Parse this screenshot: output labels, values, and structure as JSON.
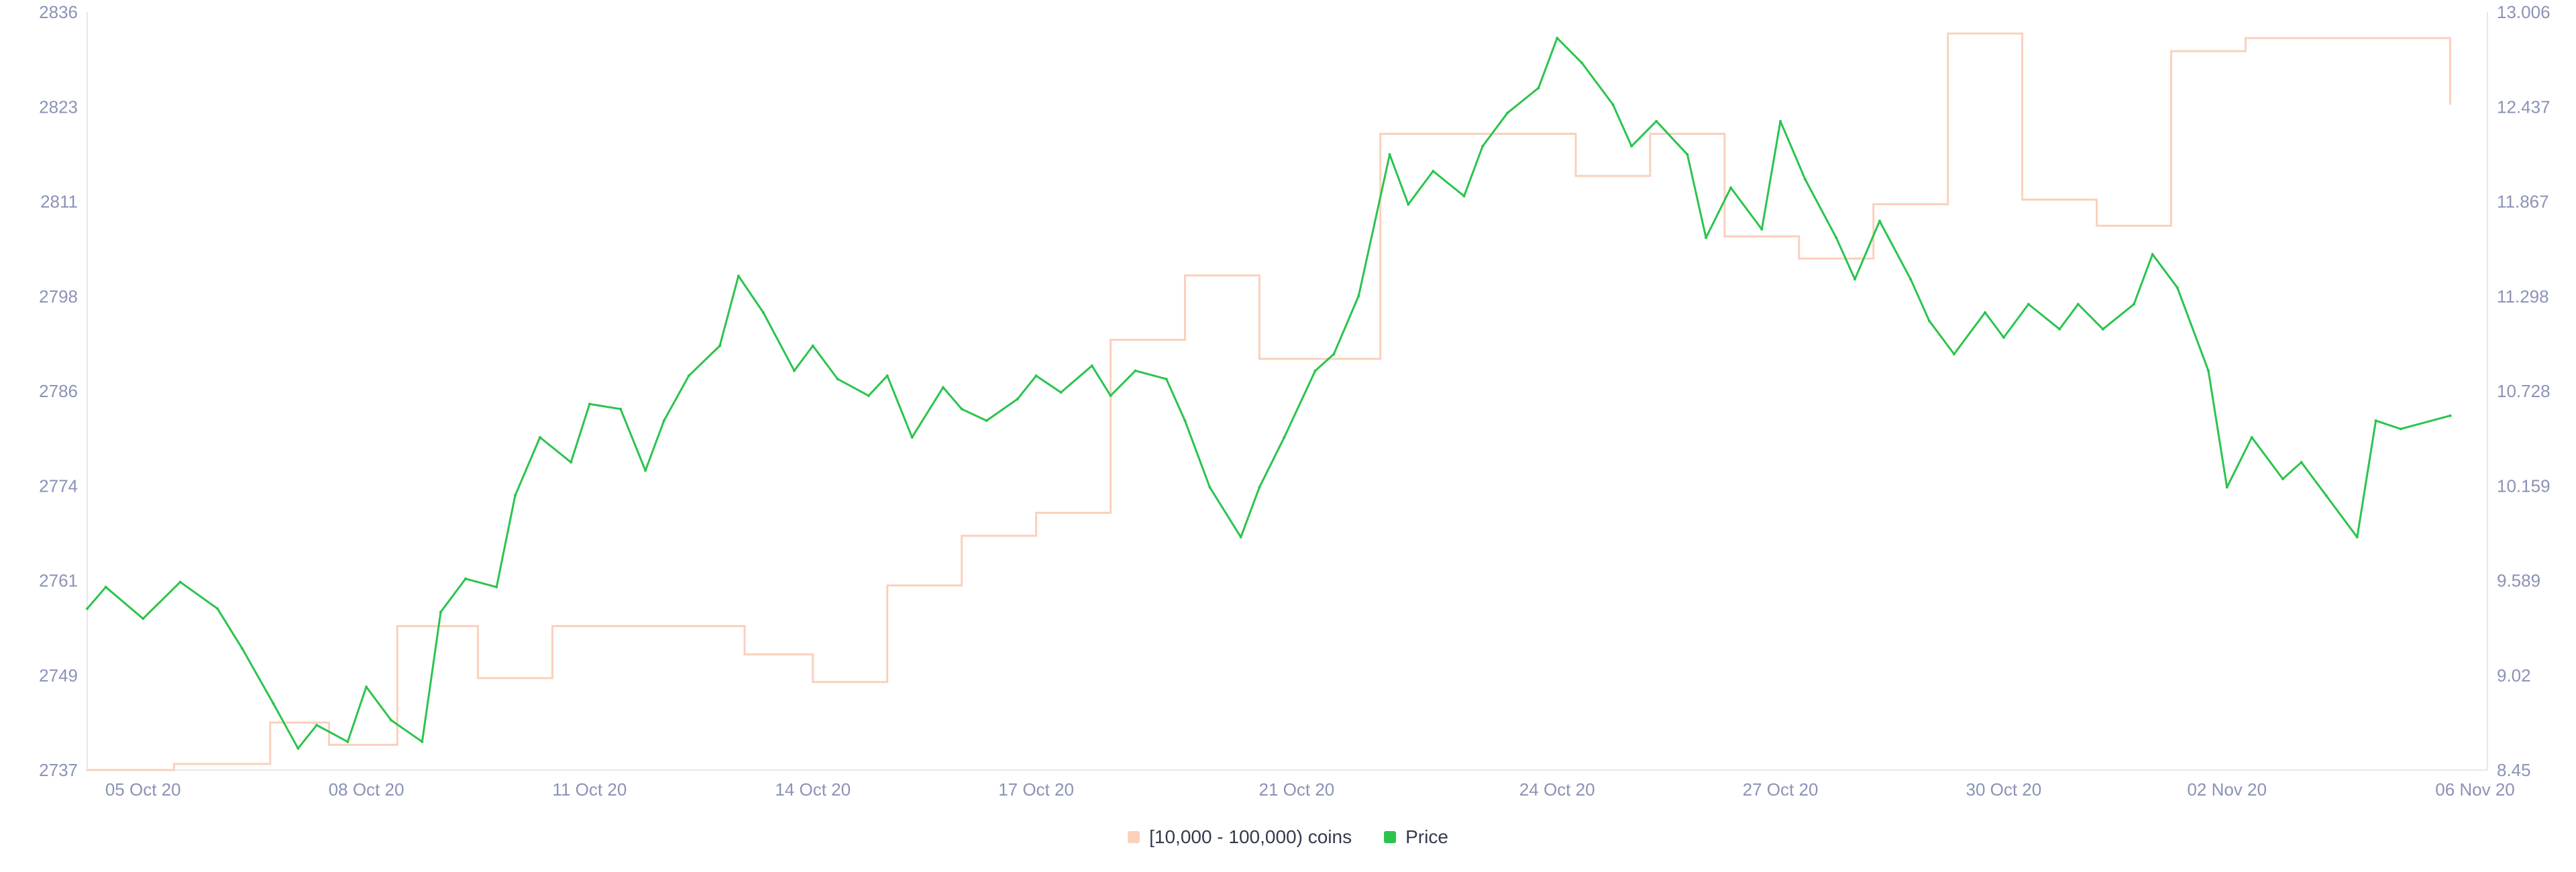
{
  "chart_data": {
    "type": "line",
    "title": "",
    "y_left": {
      "ticks": [
        "2737",
        "2749",
        "2761",
        "2774",
        "2786",
        "2798",
        "2811",
        "2823",
        "2836"
      ],
      "range": [
        2737,
        2836
      ]
    },
    "y_right": {
      "ticks": [
        "8.45",
        "9.02",
        "9.589",
        "10.159",
        "10.728",
        "11.298",
        "11.867",
        "12.437",
        "13.006"
      ],
      "range": [
        8.45,
        13.006
      ]
    },
    "x_ticks": [
      "05 Oct 20",
      "08 Oct 20",
      "11 Oct 20",
      "14 Oct 20",
      "17 Oct 20",
      "21 Oct 20",
      "24 Oct 20",
      "27 Oct 20",
      "30 Oct 20",
      "02 Nov 20",
      "06 Nov 20"
    ],
    "x_range": [
      "2020-10-04T18:00",
      "2020-11-06T00:00"
    ],
    "series": [
      {
        "name": "[10,000 - 100,000) coins",
        "axis": "left",
        "color": "#fbd0bd",
        "style": "step",
        "points": [
          [
            "2020-10-04T18:00",
            2737
          ],
          [
            "2020-10-05T22:00",
            2737.8
          ],
          [
            "2020-10-07T05:00",
            2743.2
          ],
          [
            "2020-10-08T00:00",
            2740.3
          ],
          [
            "2020-10-08T22:00",
            2755.8
          ],
          [
            "2020-10-10T00:00",
            2749
          ],
          [
            "2020-10-11T00:00",
            2755.8
          ],
          [
            "2020-10-13T14:00",
            2752.1
          ],
          [
            "2020-10-14T12:00",
            2748.5
          ],
          [
            "2020-10-15T12:00",
            2761.1
          ],
          [
            "2020-10-16T12:00",
            2767.6
          ],
          [
            "2020-10-17T12:00",
            2770.6
          ],
          [
            "2020-10-18T12:00",
            2793.2
          ],
          [
            "2020-10-19T12:00",
            2801.6
          ],
          [
            "2020-10-20T12:00",
            2790.7
          ],
          [
            "2020-10-22T03:00",
            2820.1
          ],
          [
            "2020-10-24T18:00",
            2814.6
          ],
          [
            "2020-10-25T18:00",
            2820.1
          ],
          [
            "2020-10-26T18:00",
            2806.7
          ],
          [
            "2020-10-27T18:00",
            2803.8
          ],
          [
            "2020-10-28T18:00",
            2810.9
          ],
          [
            "2020-10-29T18:00",
            2833.2
          ],
          [
            "2020-10-30T18:00",
            2811.5
          ],
          [
            "2020-10-31T18:00",
            2808.1
          ],
          [
            "2020-11-01T18:00",
            2830.9
          ],
          [
            "2020-11-02T18:00",
            2832.6
          ],
          [
            "2020-11-05T12:00",
            2824
          ]
        ]
      },
      {
        "name": "Price",
        "axis": "right",
        "color": "#2bc44e",
        "style": "line",
        "points": [
          [
            "2020-10-04T18:00",
            9.42
          ],
          [
            "2020-10-05T00:00",
            9.55
          ],
          [
            "2020-10-05T12:00",
            9.36
          ],
          [
            "2020-10-06T00:00",
            9.58
          ],
          [
            "2020-10-06T12:00",
            9.42
          ],
          [
            "2020-10-06T20:00",
            9.18
          ],
          [
            "2020-10-07T06:00",
            8.85
          ],
          [
            "2020-10-07T14:00",
            8.58
          ],
          [
            "2020-10-07T20:00",
            8.72
          ],
          [
            "2020-10-08T06:00",
            8.62
          ],
          [
            "2020-10-08T12:00",
            8.95
          ],
          [
            "2020-10-08T20:00",
            8.75
          ],
          [
            "2020-10-09T06:00",
            8.62
          ],
          [
            "2020-10-09T12:00",
            9.4
          ],
          [
            "2020-10-09T20:00",
            9.6
          ],
          [
            "2020-10-10T06:00",
            9.55
          ],
          [
            "2020-10-10T12:00",
            10.1
          ],
          [
            "2020-10-10T20:00",
            10.45
          ],
          [
            "2020-10-11T06:00",
            10.3
          ],
          [
            "2020-10-11T12:00",
            10.65
          ],
          [
            "2020-10-11T22:00",
            10.62
          ],
          [
            "2020-10-12T06:00",
            10.25
          ],
          [
            "2020-10-12T12:00",
            10.55
          ],
          [
            "2020-10-12T20:00",
            10.82
          ],
          [
            "2020-10-13T06:00",
            11.0
          ],
          [
            "2020-10-13T12:00",
            11.42
          ],
          [
            "2020-10-13T20:00",
            11.2
          ],
          [
            "2020-10-14T06:00",
            10.85
          ],
          [
            "2020-10-14T12:00",
            11.0
          ],
          [
            "2020-10-14T20:00",
            10.8
          ],
          [
            "2020-10-15T06:00",
            10.7
          ],
          [
            "2020-10-15T12:00",
            10.82
          ],
          [
            "2020-10-15T20:00",
            10.45
          ],
          [
            "2020-10-16T06:00",
            10.75
          ],
          [
            "2020-10-16T12:00",
            10.62
          ],
          [
            "2020-10-16T20:00",
            10.55
          ],
          [
            "2020-10-17T06:00",
            10.68
          ],
          [
            "2020-10-17T12:00",
            10.82
          ],
          [
            "2020-10-17T20:00",
            10.72
          ],
          [
            "2020-10-18T06:00",
            10.88
          ],
          [
            "2020-10-18T12:00",
            10.7
          ],
          [
            "2020-10-18T20:00",
            10.85
          ],
          [
            "2020-10-19T06:00",
            10.8
          ],
          [
            "2020-10-19T12:00",
            10.55
          ],
          [
            "2020-10-19T20:00",
            10.15
          ],
          [
            "2020-10-20T06:00",
            9.85
          ],
          [
            "2020-10-20T12:00",
            10.15
          ],
          [
            "2020-10-20T20:00",
            10.45
          ],
          [
            "2020-10-21T06:00",
            10.85
          ],
          [
            "2020-10-21T12:00",
            10.95
          ],
          [
            "2020-10-21T20:00",
            11.3
          ],
          [
            "2020-10-22T06:00",
            12.15
          ],
          [
            "2020-10-22T12:00",
            11.85
          ],
          [
            "2020-10-22T20:00",
            12.05
          ],
          [
            "2020-10-23T06:00",
            11.9
          ],
          [
            "2020-10-23T12:00",
            12.2
          ],
          [
            "2020-10-23T20:00",
            12.4
          ],
          [
            "2020-10-24T06:00",
            12.55
          ],
          [
            "2020-10-24T12:00",
            12.85
          ],
          [
            "2020-10-24T20:00",
            12.7
          ],
          [
            "2020-10-25T06:00",
            12.45
          ],
          [
            "2020-10-25T12:00",
            12.2
          ],
          [
            "2020-10-25T20:00",
            12.35
          ],
          [
            "2020-10-26T06:00",
            12.15
          ],
          [
            "2020-10-26T12:00",
            11.65
          ],
          [
            "2020-10-26T20:00",
            11.95
          ],
          [
            "2020-10-27T06:00",
            11.7
          ],
          [
            "2020-10-27T12:00",
            12.35
          ],
          [
            "2020-10-27T20:00",
            12.0
          ],
          [
            "2020-10-28T06:00",
            11.65
          ],
          [
            "2020-10-28T12:00",
            11.4
          ],
          [
            "2020-10-28T20:00",
            11.75
          ],
          [
            "2020-10-29T06:00",
            11.4
          ],
          [
            "2020-10-29T12:00",
            11.15
          ],
          [
            "2020-10-29T20:00",
            10.95
          ],
          [
            "2020-10-30T06:00",
            11.2
          ],
          [
            "2020-10-30T12:00",
            11.05
          ],
          [
            "2020-10-30T20:00",
            11.25
          ],
          [
            "2020-10-31T06:00",
            11.1
          ],
          [
            "2020-10-31T12:00",
            11.25
          ],
          [
            "2020-10-31T20:00",
            11.1
          ],
          [
            "2020-11-01T06:00",
            11.25
          ],
          [
            "2020-11-01T12:00",
            11.55
          ],
          [
            "2020-11-01T20:00",
            11.35
          ],
          [
            "2020-11-02T06:00",
            10.85
          ],
          [
            "2020-11-02T12:00",
            10.15
          ],
          [
            "2020-11-02T20:00",
            10.45
          ],
          [
            "2020-11-03T06:00",
            10.2
          ],
          [
            "2020-11-03T12:00",
            10.3
          ],
          [
            "2020-11-03T20:00",
            10.1
          ],
          [
            "2020-11-04T06:00",
            9.85
          ],
          [
            "2020-11-04T12:00",
            10.55
          ],
          [
            "2020-11-04T20:00",
            10.5
          ],
          [
            "2020-11-05T12:00",
            10.58
          ]
        ]
      }
    ],
    "legend": {
      "position": "bottom-center"
    },
    "grid": false
  }
}
